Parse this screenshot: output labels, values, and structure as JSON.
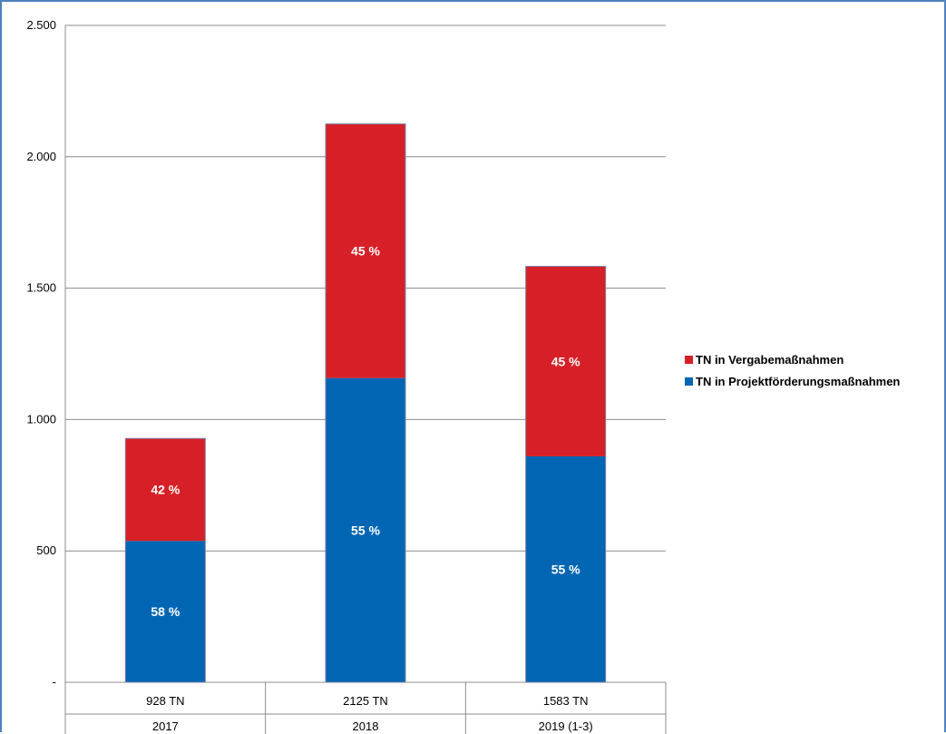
{
  "chart_data": {
    "type": "bar",
    "stacked": true,
    "categories": [
      "2017",
      "2018",
      "2019 (1-3)"
    ],
    "category_totals": [
      "928 TN",
      "2125 TN",
      "1583 TN"
    ],
    "totals": [
      928,
      2125,
      1583
    ],
    "series": [
      {
        "name": "TN in Projektförderungsmaßnahmen",
        "color": "#0066b3",
        "values": [
          538,
          1158,
          860
        ],
        "labels": [
          "58 %",
          "55 %",
          "55 %"
        ]
      },
      {
        "name": "TN in Vergabemaßnahmen",
        "color": "#d71f27",
        "values": [
          390,
          967,
          723
        ],
        "labels": [
          "42 %",
          "45 %",
          "45 %"
        ]
      }
    ],
    "y_ticks": [
      0,
      500,
      1000,
      1500,
      2000,
      2500
    ],
    "y_tick_labels": [
      "-",
      "500",
      "1.000",
      "1.500",
      "2.000",
      "2.500"
    ],
    "ylim": [
      0,
      2500
    ],
    "grid": true,
    "legend_position": "right"
  }
}
